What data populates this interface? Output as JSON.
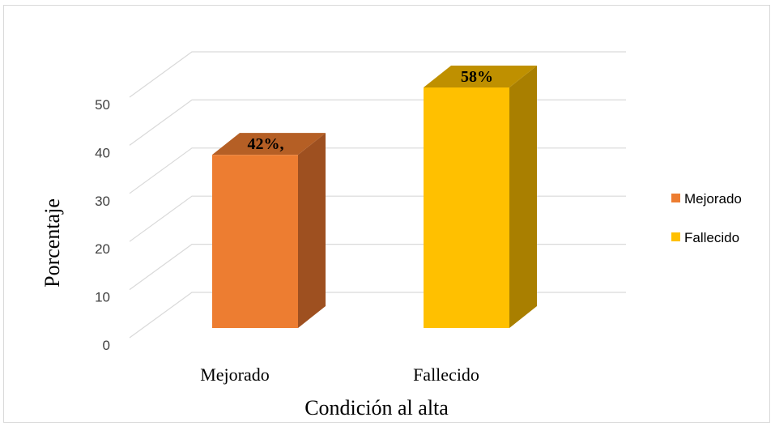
{
  "chart_data": {
    "type": "bar",
    "categories": [
      "Mejorado",
      "Fallecido"
    ],
    "values": [
      36,
      50
    ],
    "data_labels": [
      "42%,",
      "58%"
    ],
    "colors": [
      "#ED7D31",
      "#FFC000"
    ],
    "side_colors": [
      "#9E5020",
      "#A97F00"
    ],
    "top_colors": [
      "#B55F25",
      "#BF9000"
    ],
    "ylim": [
      0,
      60
    ],
    "yticks": [
      0,
      10,
      20,
      30,
      40,
      50
    ],
    "xlabel": "Condición al alta",
    "ylabel": "Porcentaje",
    "legend": {
      "position": "right",
      "entries": [
        "Mejorado",
        "Fallecido"
      ]
    },
    "grid": true,
    "style": "3d-column"
  }
}
